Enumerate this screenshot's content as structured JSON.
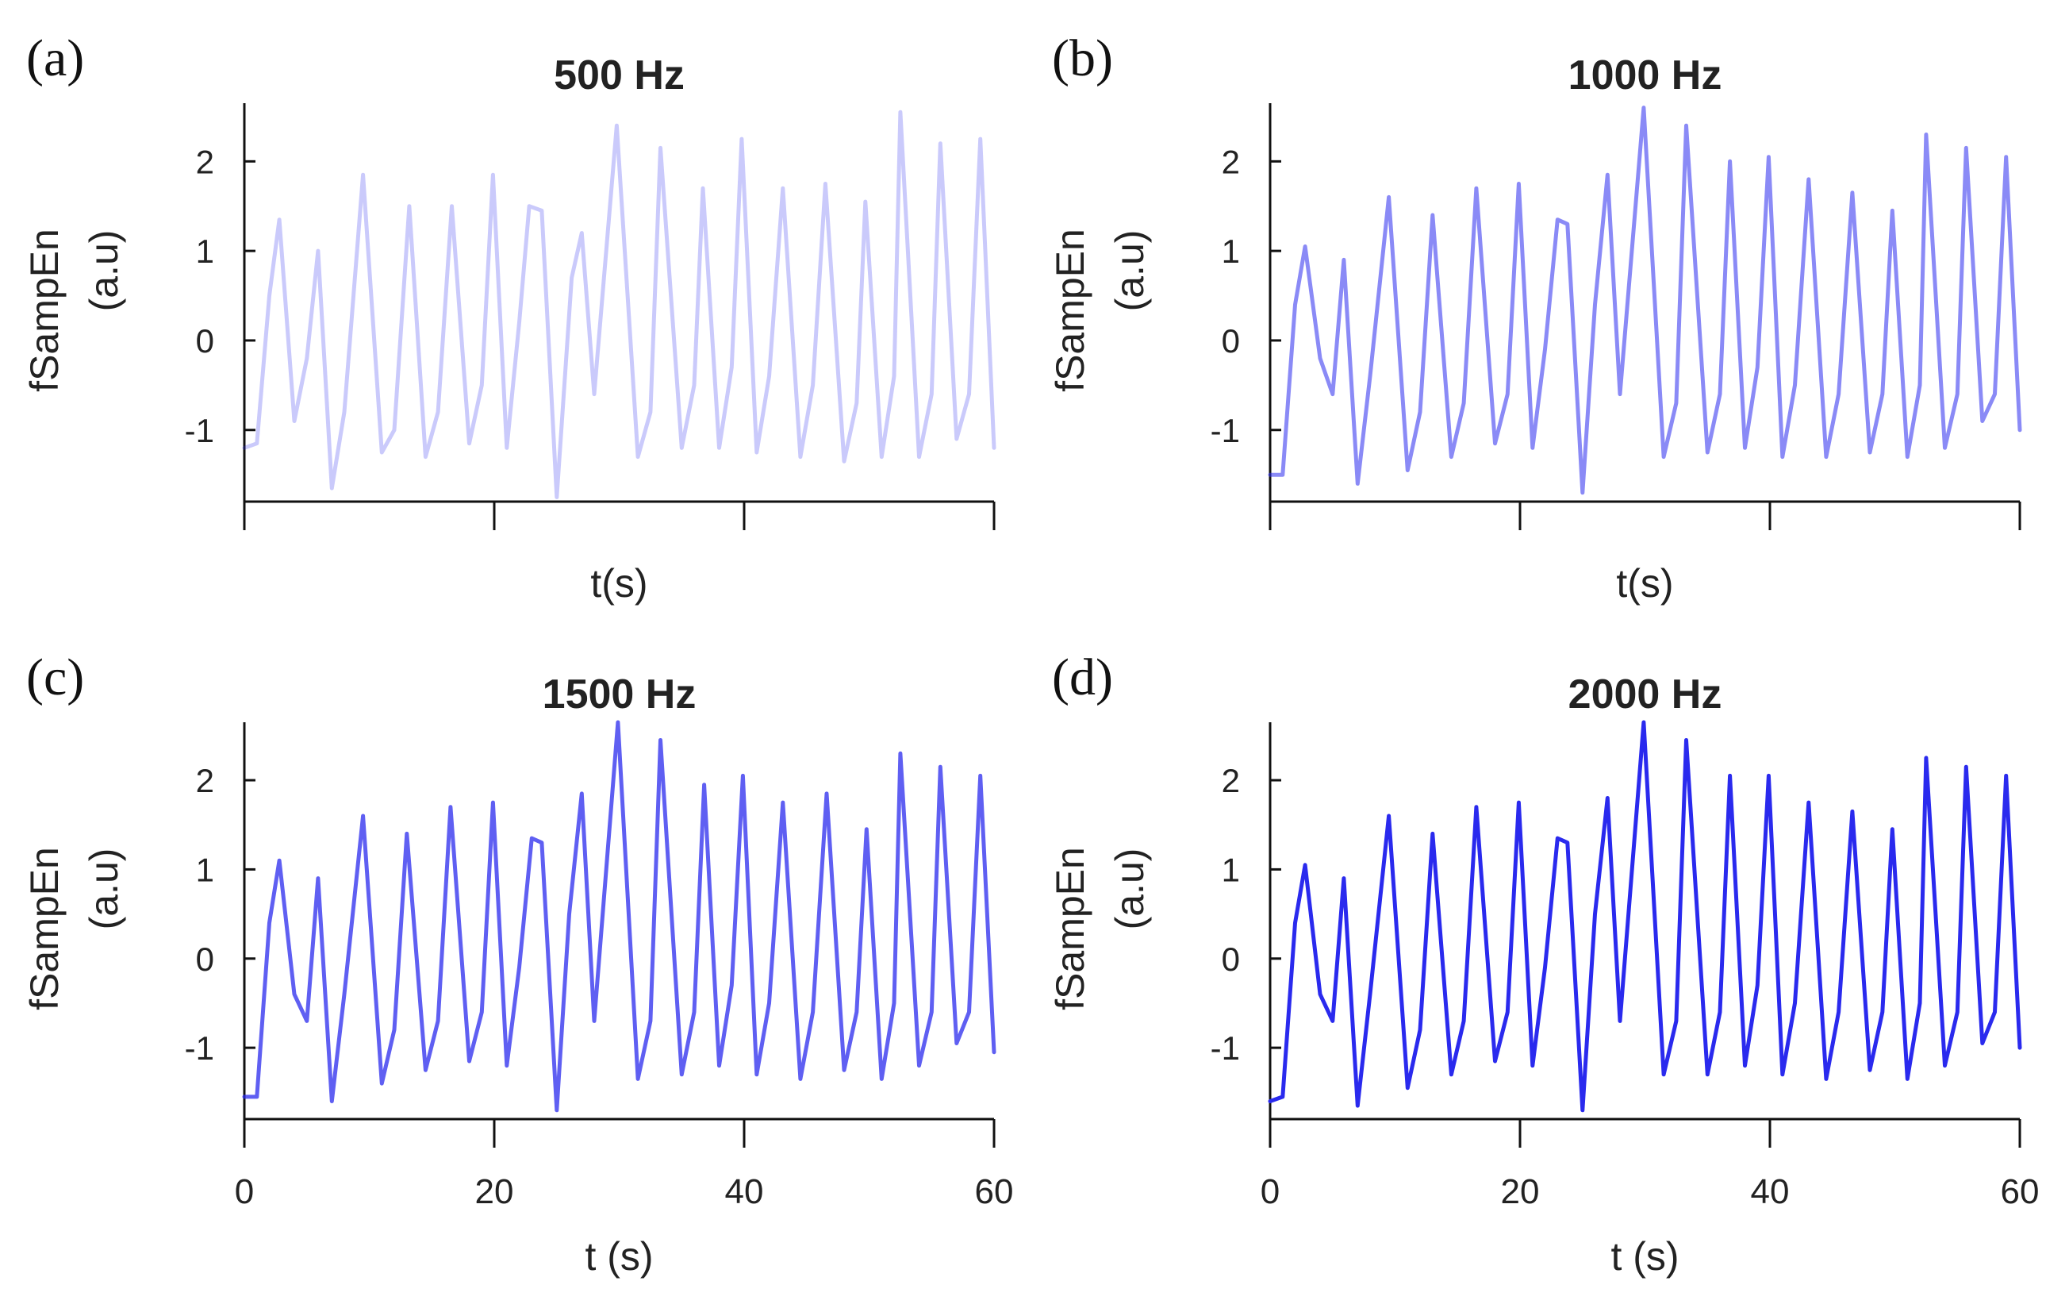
{
  "chart_data": [
    {
      "type": "line",
      "panel_label": "(a)",
      "title": "500 Hz",
      "xlabel": "t(s)",
      "ylabel": "fSampEn",
      "ylabel_unit": "(a.u)",
      "xlim": [
        0,
        60
      ],
      "ylim": [
        -1.8,
        2.65
      ],
      "xticks": [
        0,
        20,
        40,
        60
      ],
      "show_xtick_labels": false,
      "yticks": [
        -1,
        0,
        1,
        2
      ],
      "ytick_labels": [
        "-1",
        "0",
        "1",
        "2"
      ],
      "grid": false,
      "color": "#2a2aee",
      "opacity": 0.25,
      "series": [
        {
          "name": "fSampEn 500 Hz",
          "x": [
            0,
            1,
            2,
            2.8,
            4,
            5,
            5.9,
            7,
            8,
            9.5,
            11,
            12,
            13.2,
            14.5,
            15.5,
            16.6,
            18,
            19,
            19.9,
            21,
            22,
            22.8,
            23.8,
            25,
            26.2,
            27,
            28,
            29.8,
            31.5,
            32.5,
            33.3,
            35,
            36,
            36.7,
            38,
            39,
            39.8,
            41,
            42,
            43.1,
            44.5,
            45.5,
            46.5,
            48,
            49,
            49.7,
            51,
            52,
            52.5,
            54,
            55,
            55.7,
            57,
            58,
            58.9,
            60
          ],
          "y": [
            -1.2,
            -1.15,
            0.5,
            1.35,
            -0.9,
            -0.2,
            1.0,
            -1.65,
            -0.8,
            1.85,
            -1.25,
            -1.0,
            1.5,
            -1.3,
            -0.8,
            1.5,
            -1.15,
            -0.5,
            1.85,
            -1.2,
            0.2,
            1.5,
            1.45,
            -1.75,
            0.7,
            1.2,
            -0.6,
            2.4,
            -1.3,
            -0.8,
            2.15,
            -1.2,
            -0.5,
            1.7,
            -1.2,
            -0.3,
            2.25,
            -1.25,
            -0.4,
            1.7,
            -1.3,
            -0.5,
            1.75,
            -1.35,
            -0.7,
            1.55,
            -1.3,
            -0.4,
            2.55,
            -1.3,
            -0.6,
            2.2,
            -1.1,
            -0.6,
            2.25,
            -1.2
          ]
        }
      ]
    },
    {
      "type": "line",
      "panel_label": "(b)",
      "title": "1000 Hz",
      "xlabel": "t(s)",
      "ylabel": "fSampEn",
      "ylabel_unit": "(a.u)",
      "xlim": [
        0,
        60
      ],
      "ylim": [
        -1.8,
        2.65
      ],
      "xticks": [
        0,
        20,
        40,
        60
      ],
      "show_xtick_labels": false,
      "yticks": [
        -1,
        0,
        1,
        2
      ],
      "ytick_labels": [
        "-1",
        "0",
        "1",
        "2"
      ],
      "grid": false,
      "color": "#2a2aee",
      "opacity": 0.55,
      "series": [
        {
          "name": "fSampEn 1000 Hz",
          "x": [
            0,
            1,
            2,
            2.8,
            4,
            5,
            5.9,
            7,
            8,
            9.5,
            11,
            12,
            13,
            14.5,
            15.5,
            16.5,
            18,
            19,
            19.9,
            21,
            22,
            23,
            23.8,
            25,
            26,
            27,
            28,
            29.9,
            31.5,
            32.5,
            33.3,
            35,
            36,
            36.8,
            38,
            39,
            39.9,
            41,
            42,
            43.1,
            44.5,
            45.5,
            46.6,
            48,
            49,
            49.8,
            51,
            52,
            52.5,
            54,
            55,
            55.7,
            57,
            58,
            58.9,
            60
          ],
          "y": [
            -1.5,
            -1.5,
            0.4,
            1.05,
            -0.2,
            -0.6,
            0.9,
            -1.6,
            -0.4,
            1.6,
            -1.45,
            -0.8,
            1.4,
            -1.3,
            -0.7,
            1.7,
            -1.15,
            -0.6,
            1.75,
            -1.2,
            -0.1,
            1.35,
            1.3,
            -1.7,
            0.4,
            1.85,
            -0.6,
            2.6,
            -1.3,
            -0.7,
            2.4,
            -1.25,
            -0.6,
            2.0,
            -1.2,
            -0.3,
            2.05,
            -1.3,
            -0.5,
            1.8,
            -1.3,
            -0.6,
            1.65,
            -1.25,
            -0.6,
            1.45,
            -1.3,
            -0.5,
            2.3,
            -1.2,
            -0.6,
            2.15,
            -0.9,
            -0.6,
            2.05,
            -1.0
          ]
        }
      ]
    },
    {
      "type": "line",
      "panel_label": "(c)",
      "title": "1500 Hz",
      "xlabel": "t (s)",
      "ylabel": "fSampEn",
      "ylabel_unit": "(a.u)",
      "xlim": [
        0,
        60
      ],
      "ylim": [
        -1.8,
        2.65
      ],
      "xticks": [
        0,
        20,
        40,
        60
      ],
      "show_xtick_labels": true,
      "xtick_labels": [
        "0",
        "20",
        "40",
        "60"
      ],
      "yticks": [
        -1,
        0,
        1,
        2
      ],
      "ytick_labels": [
        "-1",
        "0",
        "1",
        "2"
      ],
      "grid": false,
      "color": "#2a2aee",
      "opacity": 0.75,
      "series": [
        {
          "name": "fSampEn 1500 Hz",
          "x": [
            0,
            1,
            2,
            2.8,
            4,
            5,
            5.9,
            7,
            8,
            9.5,
            11,
            12,
            13,
            14.5,
            15.5,
            16.5,
            18,
            19,
            19.9,
            21,
            22,
            23,
            23.8,
            25,
            26,
            27,
            28,
            29.9,
            31.5,
            32.5,
            33.3,
            35,
            36,
            36.8,
            38,
            39,
            39.9,
            41,
            42,
            43.1,
            44.5,
            45.5,
            46.6,
            48,
            49,
            49.8,
            51,
            52,
            52.5,
            54,
            55,
            55.7,
            57,
            58,
            58.9,
            60
          ],
          "y": [
            -1.55,
            -1.55,
            0.4,
            1.1,
            -0.4,
            -0.7,
            0.9,
            -1.6,
            -0.4,
            1.6,
            -1.4,
            -0.8,
            1.4,
            -1.25,
            -0.7,
            1.7,
            -1.15,
            -0.6,
            1.75,
            -1.2,
            -0.1,
            1.35,
            1.3,
            -1.7,
            0.5,
            1.85,
            -0.7,
            2.65,
            -1.35,
            -0.7,
            2.45,
            -1.3,
            -0.6,
            1.95,
            -1.2,
            -0.3,
            2.05,
            -1.3,
            -0.5,
            1.75,
            -1.35,
            -0.6,
            1.85,
            -1.25,
            -0.6,
            1.45,
            -1.35,
            -0.5,
            2.3,
            -1.2,
            -0.6,
            2.15,
            -0.95,
            -0.6,
            2.05,
            -1.05
          ]
        }
      ]
    },
    {
      "type": "line",
      "panel_label": "(d)",
      "title": "2000 Hz",
      "xlabel": "t (s)",
      "ylabel": "fSampEn",
      "ylabel_unit": "(a.u)",
      "xlim": [
        0,
        60
      ],
      "ylim": [
        -1.8,
        2.65
      ],
      "xticks": [
        0,
        20,
        40,
        60
      ],
      "show_xtick_labels": true,
      "xtick_labels": [
        "0",
        "20",
        "40",
        "60"
      ],
      "yticks": [
        -1,
        0,
        1,
        2
      ],
      "ytick_labels": [
        "-1",
        "0",
        "1",
        "2"
      ],
      "grid": false,
      "color": "#2a2aee",
      "opacity": 1.0,
      "series": [
        {
          "name": "fSampEn 2000 Hz",
          "x": [
            0,
            1,
            2,
            2.8,
            4,
            5,
            5.9,
            7,
            8,
            9.5,
            11,
            12,
            13,
            14.5,
            15.5,
            16.5,
            18,
            19,
            19.9,
            21,
            22,
            23,
            23.8,
            25,
            26,
            27,
            28,
            29.9,
            31.5,
            32.5,
            33.3,
            35,
            36,
            36.8,
            38,
            39,
            39.9,
            41,
            42,
            43.1,
            44.5,
            45.5,
            46.6,
            48,
            49,
            49.8,
            51,
            52,
            52.5,
            54,
            55,
            55.7,
            57,
            58,
            58.9,
            60
          ],
          "y": [
            -1.6,
            -1.55,
            0.4,
            1.05,
            -0.4,
            -0.7,
            0.9,
            -1.65,
            -0.4,
            1.6,
            -1.45,
            -0.8,
            1.4,
            -1.3,
            -0.7,
            1.7,
            -1.15,
            -0.6,
            1.75,
            -1.2,
            -0.1,
            1.35,
            1.3,
            -1.7,
            0.5,
            1.8,
            -0.7,
            2.65,
            -1.3,
            -0.7,
            2.45,
            -1.3,
            -0.6,
            2.05,
            -1.2,
            -0.3,
            2.05,
            -1.3,
            -0.5,
            1.75,
            -1.35,
            -0.6,
            1.65,
            -1.25,
            -0.6,
            1.45,
            -1.35,
            -0.5,
            2.25,
            -1.2,
            -0.6,
            2.15,
            -0.95,
            -0.6,
            2.05,
            -1.0
          ]
        }
      ]
    }
  ]
}
